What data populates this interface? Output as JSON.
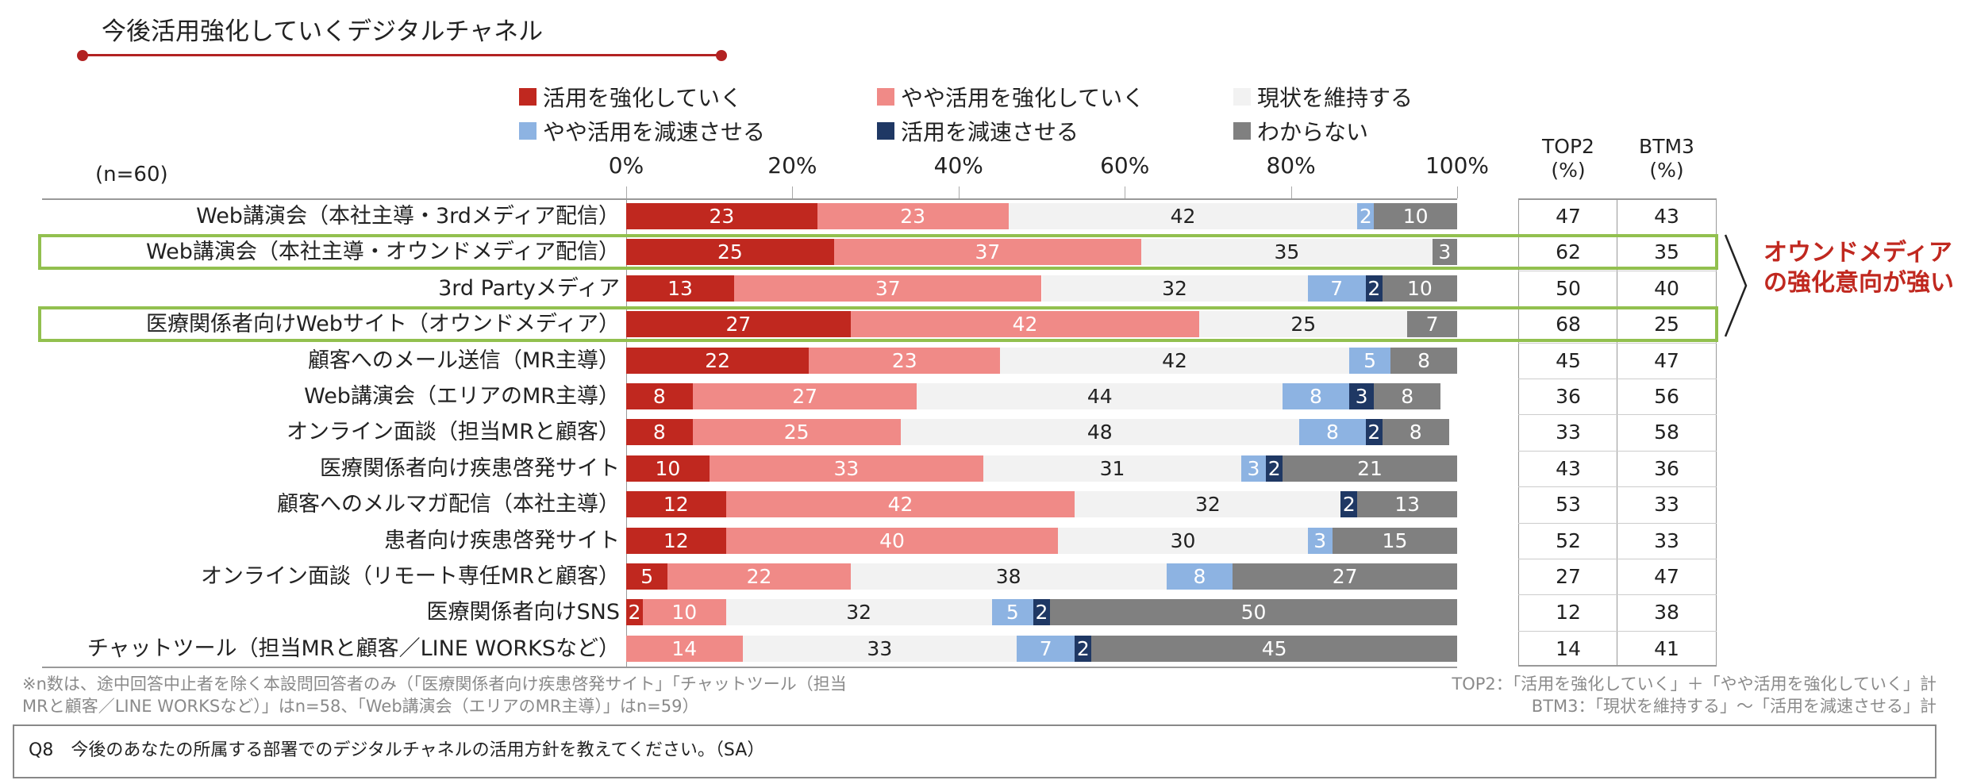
{
  "title": "今後活用強化していくデジタルチャネル",
  "chart_data": {
    "type": "bar",
    "orientation": "horizontal",
    "stacked": true,
    "title": "今後活用強化していくデジタルチャネル",
    "sample_note": "(n=60)",
    "xlim": [
      0,
      100
    ],
    "xticks": [
      "0%",
      "20%",
      "40%",
      "60%",
      "80%",
      "100%"
    ],
    "legend": [
      "活用を強化していく",
      "やや活用を強化していく",
      "現状を維持する",
      "やや活用を減速させる",
      "活用を減速させる",
      "わからない"
    ],
    "legend_position": "top",
    "colors": [
      "#c0281f",
      "#f08a87",
      "#f2f2f2",
      "#8db3e2",
      "#1f3864",
      "#808080"
    ],
    "categories": [
      "Web講演会（本社主導・3rdメディア配信）",
      "Web講演会（本社主導・オウンドメディア配信）",
      "3rd Partyメディア",
      "医療関係者向けWebサイト（オウンドメディア）",
      "顧客へのメール送信（MR主導）",
      "Web講演会（エリアのMR主導）",
      "オンライン面談（担当MRと顧客）",
      "医療関係者向け疾患啓発サイト",
      "顧客へのメルマガ配信（本社主導）",
      "患者向け疾患啓発サイト",
      "オンライン面談（リモート専任MRと顧客）",
      "医療関係者向けSNS",
      "チャットツール（担当MRと顧客／LINE WORKSなど）"
    ],
    "values": [
      [
        23,
        23,
        42,
        2,
        0,
        10
      ],
      [
        25,
        37,
        35,
        0,
        0,
        3
      ],
      [
        13,
        37,
        32,
        7,
        2,
        10
      ],
      [
        27,
        42,
        25,
        0,
        0,
        7
      ],
      [
        22,
        23,
        42,
        5,
        0,
        8
      ],
      [
        8,
        27,
        44,
        8,
        3,
        8
      ],
      [
        8,
        25,
        48,
        8,
        2,
        8
      ],
      [
        10,
        33,
        31,
        3,
        2,
        21
      ],
      [
        12,
        42,
        32,
        0,
        2,
        13
      ],
      [
        12,
        40,
        30,
        3,
        0,
        15
      ],
      [
        5,
        22,
        38,
        8,
        0,
        27
      ],
      [
        2,
        10,
        32,
        5,
        2,
        50
      ],
      [
        0,
        14,
        33,
        7,
        2,
        45
      ]
    ],
    "top2_header": [
      "TOP2",
      "(%)"
    ],
    "btm3_header": [
      "BTM3",
      "(%)"
    ],
    "top2": [
      47,
      62,
      50,
      68,
      45,
      36,
      33,
      43,
      53,
      52,
      27,
      12,
      14
    ],
    "btm3": [
      43,
      35,
      40,
      25,
      47,
      56,
      58,
      36,
      33,
      33,
      47,
      38,
      41
    ],
    "highlighted_rows": [
      1,
      3
    ],
    "highlight_color": "#92c04f",
    "annotation": [
      "オウンドメディア",
      "の強化意向が強い"
    ]
  },
  "footnotes": {
    "left": [
      "※n数は、途中回答中止者を除く本設問回答者のみ（「医療関係者向け疾患啓発サイト」「チャットツール（担当",
      "MRと顧客／LINE WORKSなど）」はn=58、「Web講演会（エリアのMR主導）」はn=59）"
    ],
    "right": [
      "TOP2：「活用を強化していく」＋「やや活用を強化していく」計",
      "BTM3：「現状を維持する」～「活用を減速させる」計"
    ]
  },
  "question": "Q8　今後のあなたの所属する部署でのデジタルチャネルの活用方針を教えてください。（SA）"
}
